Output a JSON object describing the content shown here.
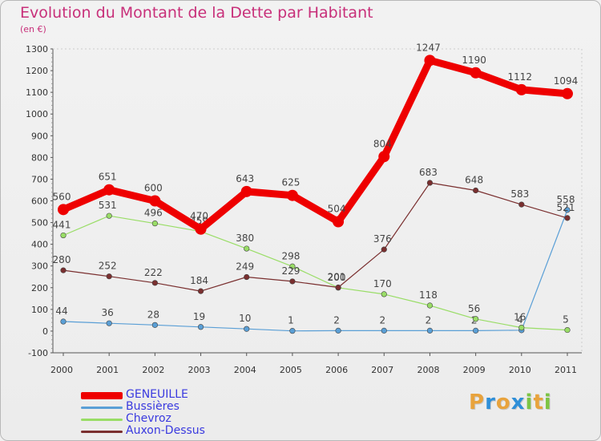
{
  "header": {
    "title": "Evolution du Montant de la Dette par Habitant",
    "subtitle": "(en €)"
  },
  "logo": {
    "letters": [
      "P",
      "r",
      "o",
      "x",
      "i",
      "t",
      "i"
    ],
    "colors": [
      "#e8a33d",
      "#2f8fd8",
      "#e8a33d",
      "#2f8fd8",
      "#7cc444",
      "#e8a33d",
      "#7cc444"
    ]
  },
  "chart_data": {
    "type": "line",
    "x": [
      "2000",
      "2001",
      "2002",
      "2003",
      "2004",
      "2005",
      "2006",
      "2007",
      "2008",
      "2009",
      "2010",
      "2011"
    ],
    "ylim": [
      -100,
      1300
    ],
    "yticks": [
      "-100",
      "0",
      "100",
      "200",
      "300",
      "400",
      "500",
      "600",
      "700",
      "800",
      "900",
      "1000",
      "1100",
      "1200",
      "1300"
    ],
    "grid": false,
    "legend_position": "bottom-left",
    "series": [
      {
        "name": "GENEUILLE",
        "values": [
          560,
          651,
          600,
          470,
          643,
          625,
          504,
          804,
          1247,
          1190,
          1112,
          1094
        ],
        "labels": [
          "560",
          "651",
          "600",
          "470",
          "643",
          "625",
          "504",
          "804",
          "1247",
          "1190",
          "1112",
          "1094"
        ],
        "color": "#ee0000"
      },
      {
        "name": "Bussières",
        "values": [
          44,
          36,
          28,
          19,
          10,
          1,
          2,
          2,
          2,
          2,
          4,
          558
        ],
        "labels": [
          "44",
          "36",
          "28",
          "19",
          "10",
          "1",
          "2",
          "2",
          "2",
          "2",
          "4",
          "558"
        ],
        "color": "#5a9fd6"
      },
      {
        "name": "Chevroz",
        "values": [
          441,
          531,
          496,
          459,
          380,
          298,
          200,
          170,
          118,
          56,
          16,
          5
        ],
        "labels": [
          "441",
          "531",
          "496",
          "459",
          "380",
          "298",
          "200",
          "170",
          "118",
          "56",
          "16",
          "5"
        ],
        "color": "#99dd66"
      },
      {
        "name": "Auxon-Dessus",
        "values": [
          280,
          252,
          222,
          184,
          249,
          229,
          201,
          376,
          683,
          648,
          583,
          521
        ],
        "labels": [
          "280",
          "252",
          "222",
          "184",
          "249",
          "229",
          "201",
          "376",
          "683",
          "648",
          "583",
          "521"
        ],
        "color": "#7a2f2f"
      }
    ]
  }
}
